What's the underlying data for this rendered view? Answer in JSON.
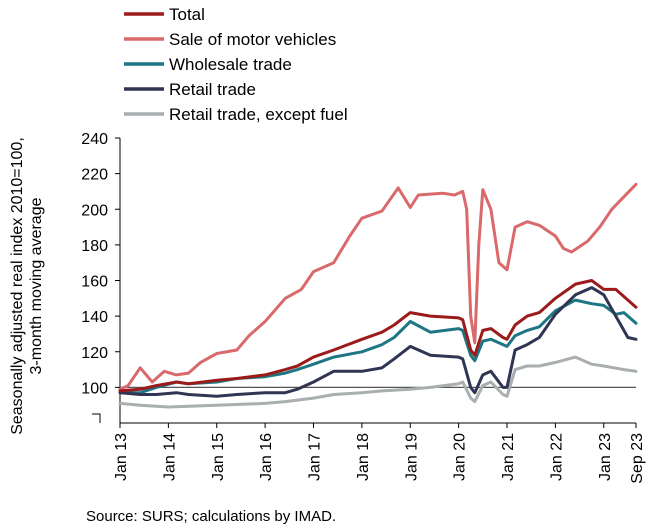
{
  "chart_data": {
    "type": "line",
    "ylabel": "Seasonally adjusted real index 2010=100, 3-month moving average",
    "ylim": [
      80,
      240
    ],
    "yticks": [
      100,
      120,
      140,
      160,
      180,
      200,
      220,
      240
    ],
    "xrange": [
      "2013-01",
      "2023-09"
    ],
    "xticks": [
      "Jan 13",
      "Jan 14",
      "Jan 15",
      "Jan 16",
      "Jan 17",
      "Jan 18",
      "Jan 19",
      "Jan 20",
      "Jan 21",
      "Jan 22",
      "Jan 23",
      "Sep 23"
    ],
    "reference_line": 100,
    "axis_break": true,
    "grid": false,
    "legend_position": "top",
    "source": "Source: SURS; calculations by IMAD.",
    "series": [
      {
        "name": "Total",
        "color": "#9b1b1b",
        "points": [
          [
            "2013-01",
            98
          ],
          [
            "2013-06",
            99
          ],
          [
            "2013-10",
            101
          ],
          [
            "2014-03",
            103
          ],
          [
            "2014-06",
            102
          ],
          [
            "2015-01",
            104
          ],
          [
            "2015-06",
            105
          ],
          [
            "2016-01",
            107
          ],
          [
            "2016-06",
            110
          ],
          [
            "2016-09",
            112
          ],
          [
            "2017-01",
            117
          ],
          [
            "2017-06",
            121
          ],
          [
            "2018-01",
            127
          ],
          [
            "2018-06",
            131
          ],
          [
            "2018-09",
            135
          ],
          [
            "2019-01",
            142
          ],
          [
            "2019-06",
            140
          ],
          [
            "2020-01",
            139
          ],
          [
            "2020-02",
            138
          ],
          [
            "2020-04",
            121
          ],
          [
            "2020-05",
            118
          ],
          [
            "2020-07",
            132
          ],
          [
            "2020-09",
            133
          ],
          [
            "2020-12",
            128
          ],
          [
            "2021-01",
            127
          ],
          [
            "2021-03",
            135
          ],
          [
            "2021-06",
            140
          ],
          [
            "2021-09",
            142
          ],
          [
            "2022-01",
            150
          ],
          [
            "2022-06",
            158
          ],
          [
            "2022-10",
            160
          ],
          [
            "2023-01",
            155
          ],
          [
            "2023-04",
            155
          ],
          [
            "2023-09",
            145
          ]
        ]
      },
      {
        "name": "Sale of motor vehicles",
        "color": "#d9696b",
        "points": [
          [
            "2013-01",
            99
          ],
          [
            "2013-03",
            101
          ],
          [
            "2013-06",
            111
          ],
          [
            "2013-09",
            103
          ],
          [
            "2013-12",
            109
          ],
          [
            "2014-03",
            107
          ],
          [
            "2014-06",
            108
          ],
          [
            "2014-09",
            114
          ],
          [
            "2015-01",
            119
          ],
          [
            "2015-06",
            121
          ],
          [
            "2015-09",
            129
          ],
          [
            "2016-01",
            137
          ],
          [
            "2016-06",
            150
          ],
          [
            "2016-10",
            155
          ],
          [
            "2017-01",
            165
          ],
          [
            "2017-06",
            170
          ],
          [
            "2017-10",
            185
          ],
          [
            "2018-01",
            195
          ],
          [
            "2018-06",
            199
          ],
          [
            "2018-10",
            212
          ],
          [
            "2019-01",
            201
          ],
          [
            "2019-03",
            208
          ],
          [
            "2019-09",
            209
          ],
          [
            "2019-12",
            208
          ],
          [
            "2020-02",
            210
          ],
          [
            "2020-03",
            200
          ],
          [
            "2020-04",
            140
          ],
          [
            "2020-05",
            125
          ],
          [
            "2020-06",
            180
          ],
          [
            "2020-07",
            211
          ],
          [
            "2020-09",
            200
          ],
          [
            "2020-11",
            170
          ],
          [
            "2021-01",
            166
          ],
          [
            "2021-03",
            190
          ],
          [
            "2021-06",
            193
          ],
          [
            "2021-09",
            191
          ],
          [
            "2022-01",
            185
          ],
          [
            "2022-03",
            178
          ],
          [
            "2022-05",
            176
          ],
          [
            "2022-09",
            182
          ],
          [
            "2022-12",
            190
          ],
          [
            "2023-03",
            200
          ],
          [
            "2023-06",
            207
          ],
          [
            "2023-09",
            214
          ]
        ]
      },
      {
        "name": "Wholesale trade",
        "color": "#1e7684",
        "points": [
          [
            "2013-01",
            97
          ],
          [
            "2013-06",
            97
          ],
          [
            "2013-10",
            100
          ],
          [
            "2014-03",
            103
          ],
          [
            "2014-06",
            102
          ],
          [
            "2015-01",
            103
          ],
          [
            "2015-06",
            105
          ],
          [
            "2016-01",
            106
          ],
          [
            "2016-06",
            108
          ],
          [
            "2016-09",
            110
          ],
          [
            "2017-01",
            113
          ],
          [
            "2017-06",
            117
          ],
          [
            "2018-01",
            120
          ],
          [
            "2018-06",
            124
          ],
          [
            "2018-09",
            128
          ],
          [
            "2019-01",
            137
          ],
          [
            "2019-06",
            131
          ],
          [
            "2020-01",
            133
          ],
          [
            "2020-02",
            132
          ],
          [
            "2020-04",
            118
          ],
          [
            "2020-05",
            115
          ],
          [
            "2020-07",
            126
          ],
          [
            "2020-09",
            127
          ],
          [
            "2020-12",
            124
          ],
          [
            "2021-01",
            123
          ],
          [
            "2021-03",
            129
          ],
          [
            "2021-06",
            132
          ],
          [
            "2021-09",
            134
          ],
          [
            "2022-01",
            143
          ],
          [
            "2022-06",
            149
          ],
          [
            "2022-10",
            147
          ],
          [
            "2023-01",
            146
          ],
          [
            "2023-04",
            141
          ],
          [
            "2023-06",
            142
          ],
          [
            "2023-09",
            136
          ]
        ]
      },
      {
        "name": "Retail trade",
        "color": "#2f3553",
        "points": [
          [
            "2013-01",
            97
          ],
          [
            "2013-06",
            96
          ],
          [
            "2013-10",
            96
          ],
          [
            "2014-03",
            97
          ],
          [
            "2014-06",
            96
          ],
          [
            "2015-01",
            95
          ],
          [
            "2015-06",
            96
          ],
          [
            "2016-01",
            97
          ],
          [
            "2016-06",
            97
          ],
          [
            "2016-09",
            99
          ],
          [
            "2017-01",
            103
          ],
          [
            "2017-06",
            109
          ],
          [
            "2018-01",
            109
          ],
          [
            "2018-06",
            111
          ],
          [
            "2018-09",
            116
          ],
          [
            "2019-01",
            123
          ],
          [
            "2019-06",
            118
          ],
          [
            "2020-01",
            117
          ],
          [
            "2020-02",
            116
          ],
          [
            "2020-04",
            100
          ],
          [
            "2020-05",
            97
          ],
          [
            "2020-07",
            107
          ],
          [
            "2020-09",
            109
          ],
          [
            "2020-12",
            100
          ],
          [
            "2021-01",
            100
          ],
          [
            "2021-03",
            121
          ],
          [
            "2021-06",
            124
          ],
          [
            "2021-09",
            128
          ],
          [
            "2022-01",
            141
          ],
          [
            "2022-06",
            152
          ],
          [
            "2022-10",
            156
          ],
          [
            "2023-01",
            152
          ],
          [
            "2023-04",
            140
          ],
          [
            "2023-07",
            128
          ],
          [
            "2023-09",
            127
          ]
        ]
      },
      {
        "name": "Retail trade, except fuel",
        "color": "#a9aeb1",
        "points": [
          [
            "2013-01",
            91
          ],
          [
            "2013-06",
            90
          ],
          [
            "2014-01",
            89
          ],
          [
            "2015-01",
            90
          ],
          [
            "2016-01",
            91
          ],
          [
            "2016-06",
            92
          ],
          [
            "2017-01",
            94
          ],
          [
            "2017-06",
            96
          ],
          [
            "2018-01",
            97
          ],
          [
            "2018-06",
            98
          ],
          [
            "2019-01",
            99
          ],
          [
            "2019-06",
            100
          ],
          [
            "2020-01",
            102
          ],
          [
            "2020-02",
            103
          ],
          [
            "2020-04",
            94
          ],
          [
            "2020-05",
            92
          ],
          [
            "2020-07",
            101
          ],
          [
            "2020-09",
            103
          ],
          [
            "2020-12",
            96
          ],
          [
            "2021-01",
            95
          ],
          [
            "2021-03",
            110
          ],
          [
            "2021-06",
            112
          ],
          [
            "2021-09",
            112
          ],
          [
            "2022-01",
            114
          ],
          [
            "2022-06",
            117
          ],
          [
            "2022-10",
            113
          ],
          [
            "2023-01",
            112
          ],
          [
            "2023-06",
            110
          ],
          [
            "2023-09",
            109
          ]
        ]
      }
    ]
  }
}
